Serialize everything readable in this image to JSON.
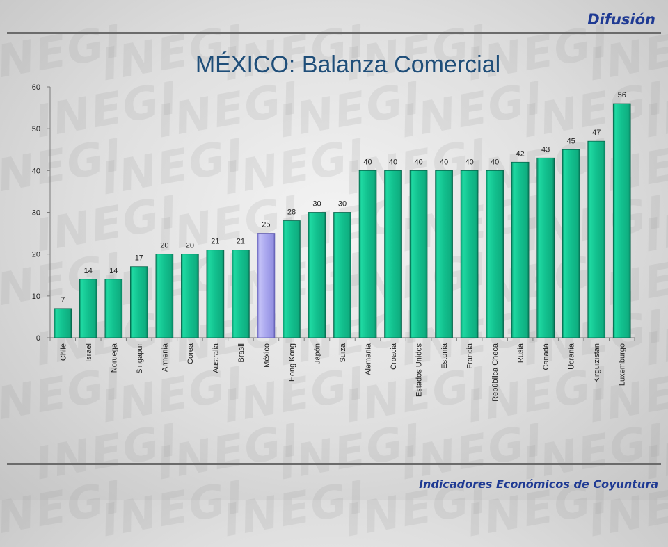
{
  "header": {
    "label": "Difusión"
  },
  "page_title": "MÉXICO: Balanza Comercial",
  "footer": {
    "label": "Indicadores Económicos de Coyuntura"
  },
  "watermark": "INEGI",
  "colors": {
    "bar": "#12c08e",
    "highlight": "#a9a6ee",
    "title": "#1f4e79",
    "header": "#1f3a93"
  },
  "chart_data": {
    "type": "bar",
    "title": "MÉXICO: Balanza Comercial",
    "categories": [
      "Chile",
      "Israel",
      "Noruega",
      "Singapur",
      "Armenia",
      "Corea",
      "Australia",
      "Brasil",
      "México",
      "Hong Kong",
      "Japón",
      "Suiza",
      "Alemania",
      "Croacia",
      "Estados Unidos",
      "Estonia",
      "Francia",
      "República Checa",
      "Rusia",
      "Canadá",
      "Ucrania",
      "Kirguizistán",
      "Luxemburgo"
    ],
    "values": [
      7,
      14,
      14,
      17,
      20,
      20,
      21,
      21,
      25,
      28,
      30,
      30,
      40,
      40,
      40,
      40,
      40,
      40,
      42,
      43,
      45,
      47,
      56
    ],
    "highlight": "México",
    "ylim": [
      0,
      60
    ],
    "yticks": [
      0,
      10,
      20,
      30,
      40,
      50,
      60
    ],
    "xlabel": "",
    "ylabel": "",
    "grid": false,
    "legend": "none"
  }
}
